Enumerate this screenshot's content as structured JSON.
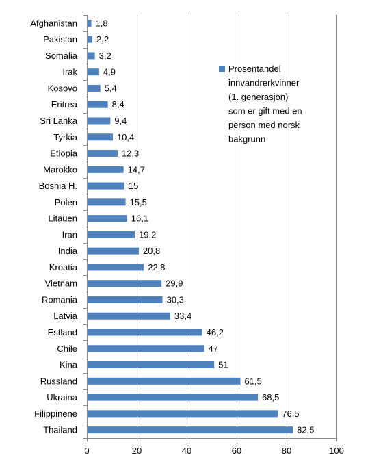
{
  "chart_data": {
    "type": "bar",
    "orientation": "horizontal",
    "categories": [
      "Afghanistan",
      "Pakistan",
      "Somalia",
      "Irak",
      "Kosovo",
      "Eritrea",
      "Sri Lanka",
      "Tyrkia",
      "Etiopia",
      "Marokko",
      "Bosnia H.",
      "Polen",
      "Litauen",
      "Iran",
      "India",
      "Kroatia",
      "Vietnam",
      "Romania",
      "Latvia",
      "Estland",
      "Chile",
      "Kina",
      "Russland",
      "Ukraina",
      "Filippinene",
      "Thailand"
    ],
    "values": [
      1.8,
      2.2,
      3.2,
      4.9,
      5.4,
      8.4,
      9.4,
      10.4,
      12.3,
      14.7,
      15,
      15.5,
      16.1,
      19.2,
      20.8,
      22.8,
      29.9,
      30.3,
      33.4,
      46.2,
      47,
      51,
      61.5,
      68.5,
      76.5,
      82.5
    ],
    "value_labels": [
      "1,8",
      "2,2",
      "3,2",
      "4,9",
      "5,4",
      "8,4",
      "9,4",
      "10,4",
      "12,3",
      "14,7",
      "15",
      "15,5",
      "16,1",
      "19,2",
      "20,8",
      "22,8",
      "29,9",
      "30,3",
      "33,4",
      "46,2",
      "47",
      "51",
      "61,5",
      "68,5",
      "76,5",
      "82,5"
    ],
    "series": [
      {
        "name": "Prosentandel innvandrerkvinner (1. generasjon) som er gift med en person med norsk bakgrunn"
      }
    ],
    "legend_lines": [
      "Prosentandel",
      "innvandrerkvinner",
      "(1. generasjon)",
      "som er gift med en",
      "person med norsk",
      "bakgrunn"
    ],
    "xlim": [
      0,
      100
    ],
    "xticks": [
      0,
      20,
      40,
      60,
      80,
      100
    ],
    "xtick_labels": [
      "0",
      "20",
      "40",
      "60",
      "80",
      "100"
    ],
    "title": "",
    "xlabel": "",
    "ylabel": "",
    "grid": "vertical",
    "legend_position": "right",
    "colors": {
      "bar": "#4F81BD",
      "grid": "#878787",
      "axis": "#878787"
    }
  }
}
